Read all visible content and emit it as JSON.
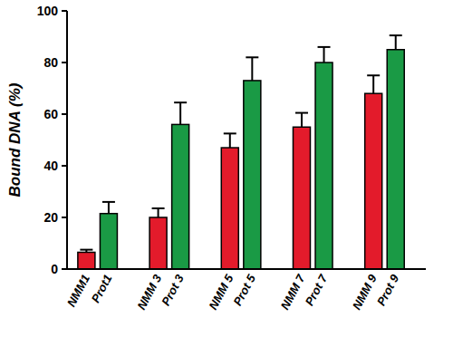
{
  "chart_data": {
    "type": "bar",
    "y_label": "Bound DNA (%)",
    "categories": [
      "NMM1",
      "Prot1",
      "NMM 3",
      "Prot 3",
      "NMM 5",
      "Prot 5",
      "NMM 7",
      "Prot 7",
      "NMM 9",
      "Prot 9"
    ],
    "values": [
      6.5,
      21.5,
      20,
      56,
      47,
      73,
      55,
      80,
      68,
      85
    ],
    "errors": [
      1,
      4.5,
      3.5,
      8.5,
      5.5,
      9,
      5.5,
      6,
      7,
      5.5
    ],
    "colors": [
      "#e31b2b",
      "#1a9a45",
      "#e31b2b",
      "#1a9a45",
      "#e31b2b",
      "#1a9a45",
      "#e31b2b",
      "#1a9a45",
      "#e31b2b",
      "#1a9a45"
    ],
    "ylim": [
      0,
      100
    ],
    "yticks": [
      0,
      20,
      40,
      60,
      80,
      100
    ],
    "grid": false
  }
}
